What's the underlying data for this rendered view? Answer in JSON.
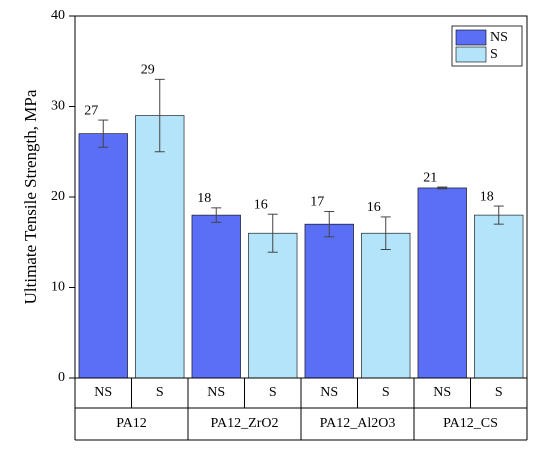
{
  "chart_data": {
    "type": "bar",
    "y_label": "Ultimate Tensile Strength, MPa",
    "categories": [
      "PA12",
      "PA12_ZrO2",
      "PA12_Al2O3",
      "PA12_CS"
    ],
    "series": [
      {
        "name": "NS",
        "color": "#5b6ff6",
        "values": [
          27,
          18,
          17,
          21
        ],
        "errors": [
          1.5,
          0.8,
          1.4,
          0.1
        ]
      },
      {
        "name": "S",
        "color": "#b4e4fa",
        "values": [
          29,
          16,
          16,
          18
        ],
        "errors": [
          4,
          2.1,
          1.8,
          1
        ]
      }
    ],
    "ylim": [
      0,
      40
    ],
    "yticks": [
      0,
      10,
      20,
      30,
      40
    ],
    "legend": "upper right"
  }
}
